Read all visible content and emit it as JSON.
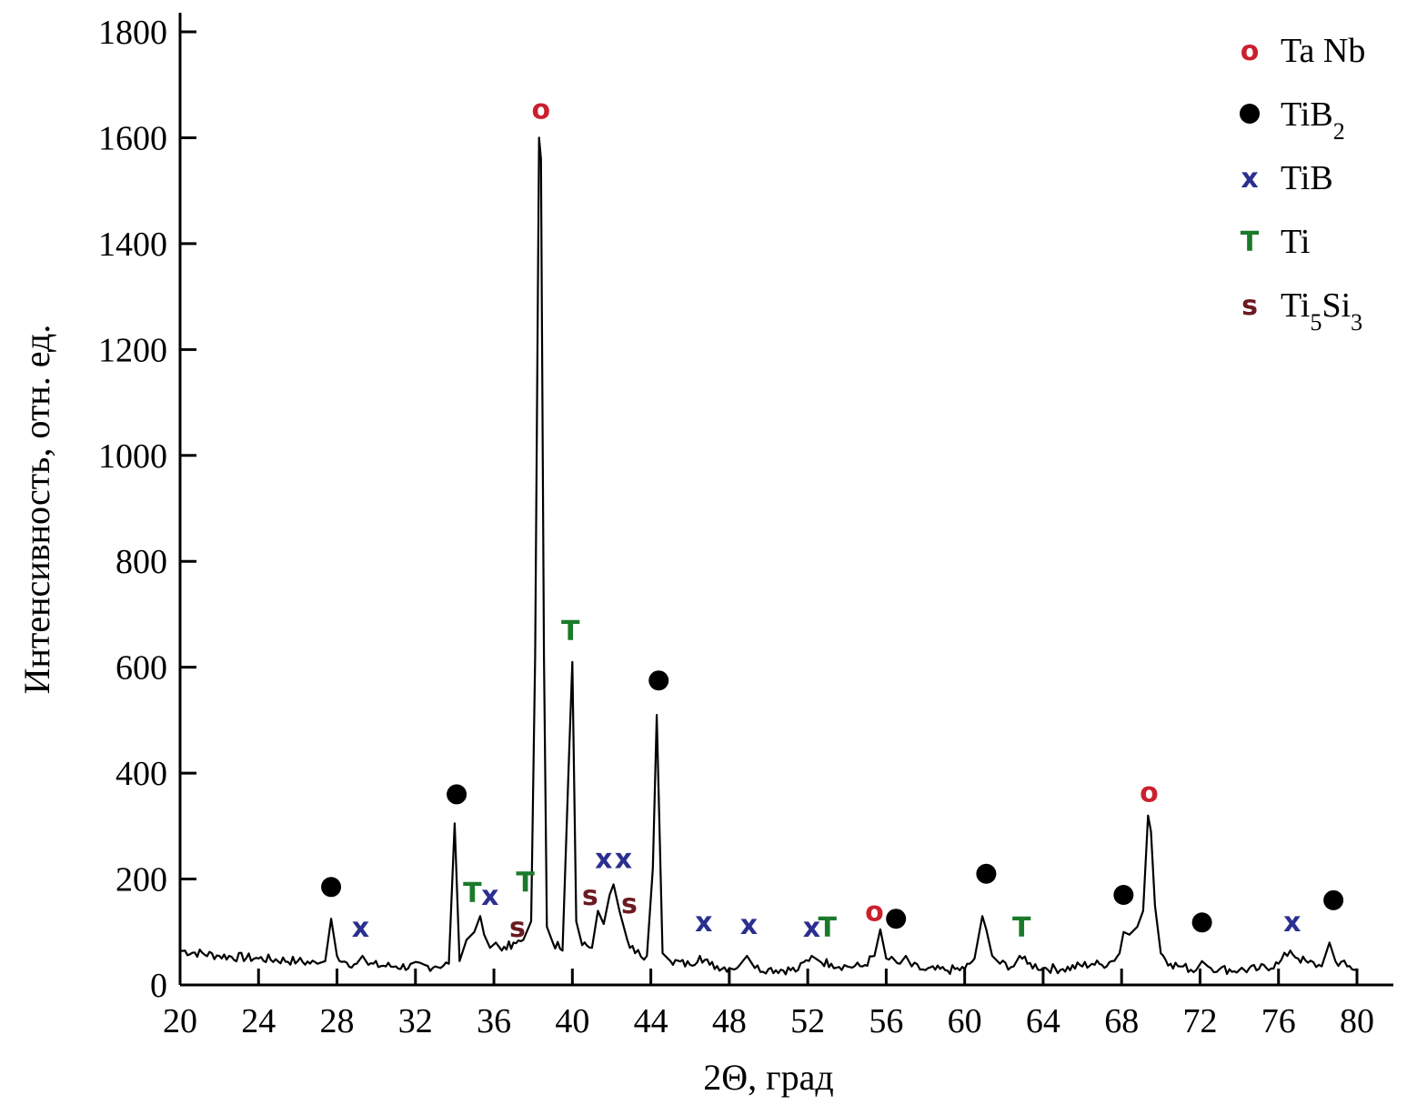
{
  "chart_data": {
    "type": "line",
    "title": "",
    "xlabel": "2Θ, град",
    "ylabel": "Интенсивность, отн. ед.",
    "xlim": [
      20,
      80
    ],
    "ylim": [
      0,
      1800
    ],
    "x_ticks": [
      20,
      24,
      28,
      32,
      36,
      40,
      44,
      48,
      52,
      56,
      60,
      64,
      68,
      72,
      76,
      80
    ],
    "y_ticks": [
      0,
      200,
      400,
      600,
      800,
      1000,
      1200,
      1400,
      1600,
      1800
    ],
    "grid": false,
    "legend_position": "top-right",
    "series": [
      {
        "color": "#000000",
        "x": [
          20,
          22,
          24,
          26,
          27,
          27.4,
          27.7,
          28.0,
          28.5,
          29.0,
          29.3,
          29.6,
          31,
          33,
          33.7,
          34.0,
          34.25,
          34.6,
          35.0,
          35.3,
          35.5,
          35.8,
          36.1,
          36.4,
          37.0,
          37.5,
          37.9,
          38.1,
          38.3,
          38.4,
          38.55,
          38.7,
          39.0,
          39.5,
          39.8,
          40.0,
          40.2,
          40.5,
          41.0,
          41.3,
          41.6,
          41.9,
          42.1,
          42.4,
          42.8,
          43.2,
          43.8,
          44.1,
          44.3,
          44.6,
          45.0,
          46.0,
          46.5,
          47.0,
          48.0,
          48.5,
          48.9,
          49.3,
          50,
          51.5,
          52.2,
          52.6,
          53.2,
          54.0,
          54.8,
          55.4,
          55.7,
          56.0,
          56.7,
          57.0,
          57.3,
          58,
          59,
          60.0,
          60.5,
          60.9,
          61.1,
          61.4,
          61.8,
          62.5,
          62.8,
          63.2,
          64,
          65,
          66.5,
          67.0,
          67.5,
          67.9,
          68.1,
          68.4,
          68.8,
          69.1,
          69.35,
          69.5,
          69.7,
          70.0,
          70.5,
          71.0,
          71.8,
          72.1,
          72.4,
          73,
          74,
          75,
          76.0,
          76.6,
          77.0,
          77.5,
          78.2,
          78.6,
          78.9,
          79.5,
          80.0
        ],
        "y": [
          65,
          55,
          50,
          45,
          40,
          45,
          125,
          55,
          42,
          40,
          55,
          38,
          35,
          35,
          40,
          305,
          45,
          85,
          100,
          130,
          95,
          70,
          80,
          65,
          80,
          85,
          120,
          620,
          1600,
          1560,
          620,
          110,
          80,
          65,
          400,
          610,
          120,
          75,
          70,
          140,
          115,
          170,
          190,
          140,
          85,
          60,
          55,
          220,
          510,
          60,
          45,
          38,
          55,
          38,
          32,
          36,
          55,
          32,
          30,
          28,
          55,
          45,
          40,
          35,
          35,
          55,
          105,
          50,
          40,
          55,
          35,
          28,
          28,
          30,
          50,
          130,
          105,
          55,
          40,
          35,
          55,
          40,
          32,
          30,
          40,
          38,
          45,
          60,
          100,
          95,
          110,
          140,
          320,
          290,
          150,
          60,
          40,
          35,
          28,
          45,
          35,
          30,
          28,
          30,
          40,
          65,
          50,
          42,
          35,
          80,
          45,
          35,
          30
        ]
      }
    ],
    "legend": [
      {
        "symbol": "o",
        "label": "Ta Nb",
        "color": "#cc1f2e"
      },
      {
        "symbol": "dot",
        "label": "TiB",
        "sub": "2",
        "color": "#000000"
      },
      {
        "symbol": "x",
        "label": "TiB",
        "color": "#2b2f8f"
      },
      {
        "symbol": "T",
        "label": "Ti",
        "color": "#1a7a2a"
      },
      {
        "symbol": "s",
        "label": "Ti",
        "sub": "5",
        "label2": "Si",
        "sub2": "3",
        "color": "#6b1a22"
      }
    ],
    "markers": [
      {
        "symbol": "o",
        "x": 38.4,
        "y": 1655
      },
      {
        "symbol": "o",
        "x": 55.4,
        "y": 140
      },
      {
        "symbol": "o",
        "x": 69.4,
        "y": 365
      },
      {
        "symbol": "dot",
        "x": 27.7,
        "y": 185
      },
      {
        "symbol": "dot",
        "x": 34.1,
        "y": 360
      },
      {
        "symbol": "dot",
        "x": 44.4,
        "y": 575
      },
      {
        "symbol": "dot",
        "x": 56.5,
        "y": 125
      },
      {
        "symbol": "dot",
        "x": 61.1,
        "y": 210
      },
      {
        "symbol": "dot",
        "x": 68.1,
        "y": 170
      },
      {
        "symbol": "dot",
        "x": 72.1,
        "y": 118
      },
      {
        "symbol": "dot",
        "x": 78.8,
        "y": 160
      },
      {
        "symbol": "x",
        "x": 29.2,
        "y": 110
      },
      {
        "symbol": "x",
        "x": 35.8,
        "y": 170
      },
      {
        "symbol": "x",
        "x": 41.6,
        "y": 240
      },
      {
        "symbol": "x",
        "x": 42.6,
        "y": 240
      },
      {
        "symbol": "x",
        "x": 46.7,
        "y": 120
      },
      {
        "symbol": "x",
        "x": 49.0,
        "y": 115
      },
      {
        "symbol": "x",
        "x": 52.2,
        "y": 110
      },
      {
        "symbol": "x",
        "x": 76.7,
        "y": 120
      },
      {
        "symbol": "T",
        "x": 34.9,
        "y": 175
      },
      {
        "symbol": "T",
        "x": 37.6,
        "y": 195
      },
      {
        "symbol": "T",
        "x": 39.9,
        "y": 670
      },
      {
        "symbol": "T",
        "x": 53.0,
        "y": 110
      },
      {
        "symbol": "T",
        "x": 62.9,
        "y": 110
      },
      {
        "symbol": "s",
        "x": 37.2,
        "y": 110
      },
      {
        "symbol": "s",
        "x": 40.9,
        "y": 170
      },
      {
        "symbol": "s",
        "x": 42.9,
        "y": 155
      }
    ]
  }
}
